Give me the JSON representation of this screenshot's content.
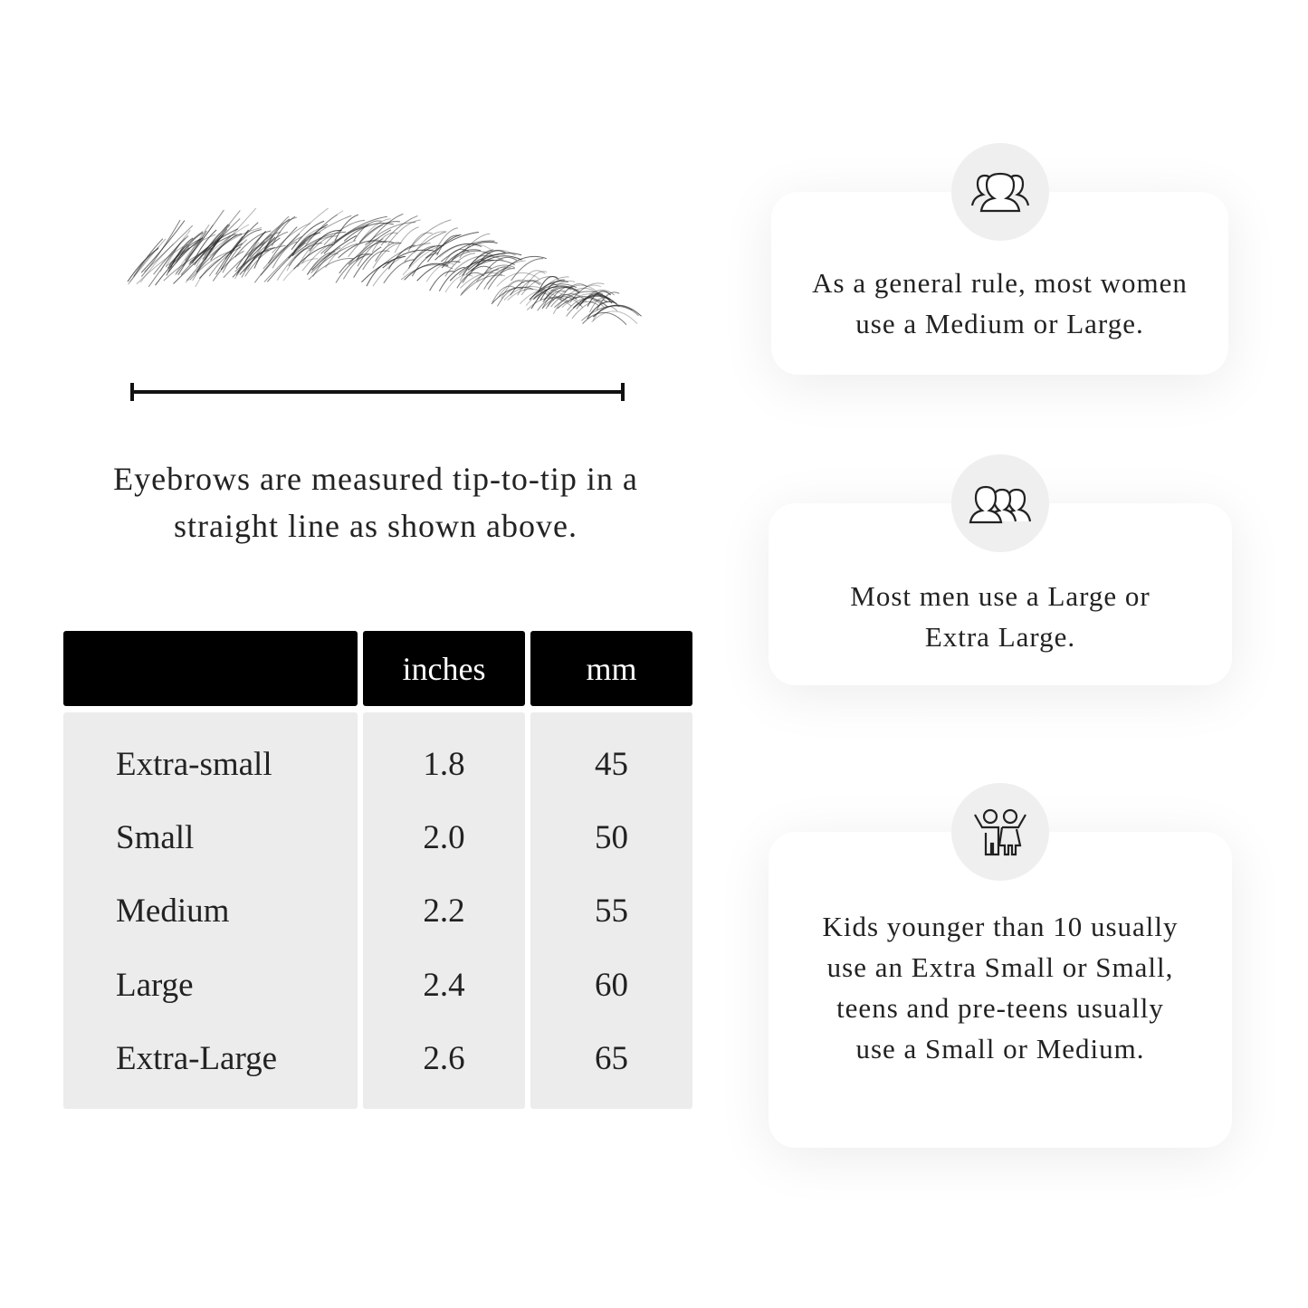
{
  "caption": "Eyebrows are measured tip-to-tip in a straight line as shown above.",
  "table": {
    "headers": [
      "",
      "inches",
      "mm"
    ],
    "rows": [
      {
        "size": "Extra-small",
        "inches": "1.8",
        "mm": "45"
      },
      {
        "size": "Small",
        "inches": "2.0",
        "mm": "50"
      },
      {
        "size": "Medium",
        "inches": "2.2",
        "mm": "55"
      },
      {
        "size": "Large",
        "inches": "2.4",
        "mm": "60"
      },
      {
        "size": "Extra-Large",
        "inches": "2.6",
        "mm": "65"
      }
    ]
  },
  "cards": [
    {
      "icon": "women-group-icon",
      "text": "As a general rule, most women use a Medium or Large."
    },
    {
      "icon": "men-group-icon",
      "text": "Most men use a Large or Extra Large."
    },
    {
      "icon": "kids-icon",
      "text": "Kids younger than 10 usually use an Extra Small or Small, teens and pre-teens usually use a Small or Medium."
    }
  ]
}
